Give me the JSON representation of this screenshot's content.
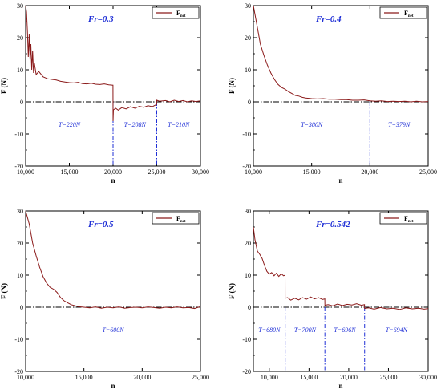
{
  "chart_data": [
    {
      "type": "line",
      "title": "Fr=0.3",
      "xlabel": "n",
      "ylabel": "F (N)",
      "xlim": [
        10000,
        30000
      ],
      "ylim": [
        -20,
        30
      ],
      "xticks": [
        10000,
        15000,
        20000,
        25000,
        30000
      ],
      "xtick_labels": [
        "10,000",
        "15,000",
        "20,000",
        "25,000",
        "30,000"
      ],
      "yticks": [
        -20,
        -10,
        0,
        10,
        20,
        30
      ],
      "ytick_labels": [
        "-20",
        "-10",
        "0",
        "10",
        "20",
        "30"
      ],
      "zero_line": true,
      "grid": false,
      "legend_position": "top-right",
      "series": [
        {
          "name": "F",
          "name_sub": "net",
          "color": "#8b1a1a",
          "x": [
            10000,
            10100,
            10200,
            10300,
            10400,
            10500,
            10600,
            10700,
            10800,
            10900,
            11000,
            11200,
            11500,
            12000,
            12500,
            13000,
            13500,
            14000,
            14500,
            15000,
            15500,
            16000,
            16500,
            17000,
            17500,
            18000,
            18500,
            19000,
            19500,
            19990,
            20000,
            20050,
            20300,
            20600,
            21000,
            21500,
            22000,
            22500,
            23000,
            23500,
            24000,
            24500,
            24990,
            25000,
            25300,
            26000,
            26500,
            27000,
            27500,
            28000,
            28500,
            29000,
            29500,
            30000
          ],
          "y": [
            30,
            28,
            22,
            14,
            21,
            13,
            18,
            10,
            16,
            9,
            12,
            8.5,
            9.5,
            7.8,
            7.2,
            7.0,
            6.8,
            6.4,
            6.2,
            6.0,
            5.9,
            6.1,
            5.7,
            5.6,
            5.8,
            5.5,
            5.4,
            5.6,
            5.3,
            5.2,
            -6,
            -2.5,
            -2.0,
            -2.6,
            -1.8,
            -2.2,
            -1.5,
            -2.0,
            -1.4,
            -1.7,
            -1.2,
            -1.5,
            -0.8,
            0.5,
            0.2,
            0.4,
            0.0,
            0.5,
            0.1,
            0.4,
            0.0,
            0.3,
            0.1,
            0.3
          ]
        }
      ],
      "cycle_boundaries": [
        20000,
        25000
      ],
      "annotations": [
        {
          "text": "T=220N",
          "x": 15000,
          "y": -7
        },
        {
          "text": "T=208N",
          "x": 22500,
          "y": -7
        },
        {
          "text": "T=210N",
          "x": 27500,
          "y": -7
        }
      ]
    },
    {
      "type": "line",
      "title": "Fr=0.4",
      "xlabel": "n",
      "ylabel": "F (N)",
      "xlim": [
        10000,
        25000
      ],
      "ylim": [
        -20,
        30
      ],
      "xticks": [
        10000,
        15000,
        20000,
        25000
      ],
      "xtick_labels": [
        "10,000",
        "15,000",
        "20,000",
        "25,000"
      ],
      "yticks": [
        -20,
        -10,
        0,
        10,
        20,
        30
      ],
      "ytick_labels": [
        "-20",
        "-10",
        "0",
        "10",
        "20",
        "30"
      ],
      "zero_line": true,
      "grid": false,
      "legend_position": "top-right",
      "series": [
        {
          "name": "F",
          "name_sub": "net",
          "color": "#8b1a1a",
          "x": [
            10000,
            10300,
            10600,
            10900,
            11200,
            11500,
            11800,
            12100,
            12400,
            12700,
            13000,
            13300,
            13600,
            13900,
            14200,
            14500,
            15000,
            15500,
            16000,
            16500,
            17000,
            17500,
            18000,
            18500,
            19000,
            19500,
            20000,
            20500,
            21000,
            21500,
            22000,
            22500,
            23000,
            23500,
            24000,
            24500,
            25000
          ],
          "y": [
            30,
            24,
            18,
            14.5,
            11.5,
            9.0,
            7.0,
            5.5,
            4.5,
            4.0,
            3.2,
            2.6,
            2.0,
            1.8,
            1.4,
            1.2,
            1.0,
            0.9,
            1.0,
            0.8,
            0.8,
            0.7,
            0.7,
            0.5,
            0.5,
            0.6,
            0.3,
            0.2,
            0.3,
            0.1,
            0.2,
            0.1,
            0.2,
            0.0,
            0.2,
            0.0,
            0.1
          ]
        }
      ],
      "cycle_boundaries": [
        20000
      ],
      "annotations": [
        {
          "text": "T=380N",
          "x": 15000,
          "y": -7
        },
        {
          "text": "T=379N",
          "x": 22500,
          "y": -7
        }
      ]
    },
    {
      "type": "line",
      "title": "Fr=0.5",
      "xlabel": "n",
      "ylabel": "F (N)",
      "xlim": [
        10000,
        25000
      ],
      "ylim": [
        -20,
        30
      ],
      "xticks": [
        10000,
        15000,
        20000,
        25000
      ],
      "xtick_labels": [
        "10,000",
        "15,000",
        "20,000",
        "25,000"
      ],
      "yticks": [
        -20,
        -10,
        0,
        10,
        20,
        30
      ],
      "ytick_labels": [
        "-20",
        "-10",
        "0",
        "10",
        "20",
        "30"
      ],
      "zero_line": true,
      "grid": false,
      "legend_position": "top-right",
      "series": [
        {
          "name": "F",
          "name_sub": "net",
          "color": "#8b1a1a",
          "x": [
            10000,
            10300,
            10600,
            10900,
            11200,
            11500,
            11800,
            12100,
            12400,
            12700,
            13000,
            13300,
            13600,
            13900,
            14200,
            14500,
            15000,
            15500,
            16000,
            16500,
            17000,
            17500,
            18000,
            18500,
            19000,
            19500,
            20000,
            20500,
            21000,
            21500,
            22000,
            22500,
            23000,
            23500,
            24000,
            24500,
            25000
          ],
          "y": [
            30,
            26,
            20,
            16,
            12.5,
            9.5,
            7.5,
            6.2,
            5.6,
            4.6,
            3.0,
            2.0,
            1.4,
            0.8,
            0.5,
            0.2,
            0.0,
            -0.2,
            0.1,
            -0.3,
            0.0,
            -0.2,
            0.1,
            -0.3,
            -0.1,
            0.0,
            -0.2,
            0.1,
            -0.1,
            -0.3,
            0.0,
            -0.2,
            0.1,
            -0.2,
            -0.1,
            -0.4,
            0.2
          ]
        }
      ],
      "cycle_boundaries": [],
      "annotations": [
        {
          "text": "T=600N",
          "x": 17500,
          "y": -7
        }
      ]
    },
    {
      "type": "line",
      "title": "Fr=0.542",
      "xlabel": "n",
      "ylabel": "F (N)",
      "xlim": [
        8000,
        30000
      ],
      "ylim": [
        -20,
        30
      ],
      "xticks": [
        10000,
        15000,
        20000,
        25000,
        30000
      ],
      "xtick_labels": [
        "10,000",
        "15,000",
        "20,000",
        "25,000",
        "30,000"
      ],
      "yticks": [
        -20,
        -10,
        0,
        10,
        20,
        30
      ],
      "ytick_labels": [
        "-20",
        "-10",
        "0",
        "10",
        "20",
        "30"
      ],
      "zero_line": true,
      "grid": false,
      "legend_position": "top-right",
      "series": [
        {
          "name": "F",
          "name_sub": "net",
          "color": "#8b1a1a",
          "x": [
            8000,
            8200,
            8500,
            8800,
            9100,
            9400,
            9700,
            10000,
            10300,
            10600,
            10900,
            11200,
            11500,
            11800,
            11990,
            12000,
            12300,
            12700,
            13200,
            13700,
            14200,
            14700,
            15200,
            15700,
            16200,
            16700,
            16990,
            17000,
            17400,
            18000,
            18600,
            19200,
            19800,
            20400,
            21000,
            21600,
            21990,
            22000,
            22500,
            23200,
            24000,
            24800,
            25600,
            26400,
            27200,
            28000,
            28800,
            29500,
            30000
          ],
          "y": [
            25,
            21,
            17.5,
            16.5,
            15.2,
            13,
            11.2,
            10.3,
            10.8,
            9.8,
            10.6,
            9.6,
            10.4,
            9.8,
            10.0,
            2.8,
            3.0,
            2.2,
            2.8,
            2.3,
            3.0,
            2.5,
            3.2,
            2.6,
            3.0,
            2.4,
            2.6,
            0.6,
            0.8,
            0.4,
            1.0,
            0.5,
            0.9,
            0.7,
            1.1,
            0.6,
            0.8,
            -0.4,
            -0.2,
            -0.6,
            -0.1,
            -0.5,
            -0.3,
            -0.7,
            -0.2,
            -0.5,
            -0.3,
            -0.6,
            -0.4
          ]
        }
      ],
      "cycle_boundaries": [
        12000,
        17000,
        22000
      ],
      "annotations": [
        {
          "text": "T=680N",
          "x": 10000,
          "y": -7
        },
        {
          "text": "T=700N",
          "x": 14500,
          "y": -7
        },
        {
          "text": "T=696N",
          "x": 19500,
          "y": -7
        },
        {
          "text": "T=694N",
          "x": 26000,
          "y": -7
        }
      ]
    }
  ]
}
